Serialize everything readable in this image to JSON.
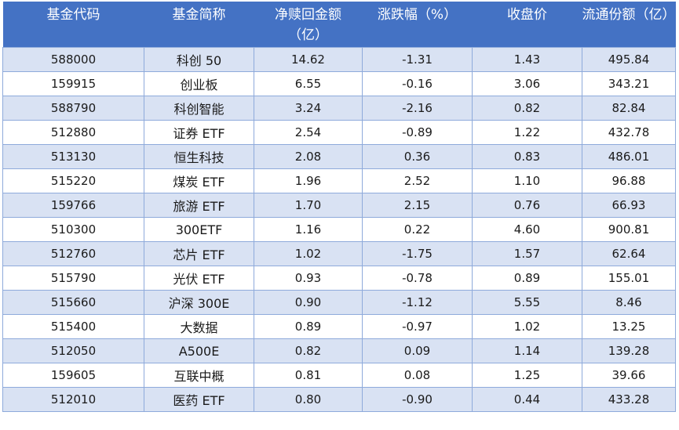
{
  "header": {
    "code": "基金代码",
    "name": "基金简称",
    "net_inflow": "净赎回金额（亿）",
    "change": "涨跌幅（%）",
    "close": "收盘价",
    "shares": "流通份额（亿）"
  },
  "rows": [
    {
      "code": "588000",
      "name": "科创 50",
      "net_inflow": "14.62",
      "change": "-1.31",
      "close": "1.43",
      "shares": "495.84"
    },
    {
      "code": "159915",
      "name": "创业板",
      "net_inflow": "6.55",
      "change": "-0.16",
      "close": "3.06",
      "shares": "343.21"
    },
    {
      "code": "588790",
      "name": "科创智能",
      "net_inflow": "3.24",
      "change": "-2.16",
      "close": "0.82",
      "shares": "82.84"
    },
    {
      "code": "512880",
      "name": "证券 ETF",
      "net_inflow": "2.54",
      "change": "-0.89",
      "close": "1.22",
      "shares": "432.78"
    },
    {
      "code": "513130",
      "name": "恒生科技",
      "net_inflow": "2.08",
      "change": "0.36",
      "close": "0.83",
      "shares": "486.01"
    },
    {
      "code": "515220",
      "name": "煤炭 ETF",
      "net_inflow": "1.96",
      "change": "2.52",
      "close": "1.10",
      "shares": "96.88"
    },
    {
      "code": "159766",
      "name": "旅游 ETF",
      "net_inflow": "1.70",
      "change": "2.15",
      "close": "0.76",
      "shares": "66.93"
    },
    {
      "code": "510300",
      "name": "300ETF",
      "net_inflow": "1.16",
      "change": "0.22",
      "close": "4.60",
      "shares": "900.81"
    },
    {
      "code": "512760",
      "name": "芯片 ETF",
      "net_inflow": "1.02",
      "change": "-1.75",
      "close": "1.57",
      "shares": "62.64"
    },
    {
      "code": "515790",
      "name": "光伏 ETF",
      "net_inflow": "0.93",
      "change": "-0.78",
      "close": "0.89",
      "shares": "155.01"
    },
    {
      "code": "515660",
      "name": "沪深 300E",
      "net_inflow": "0.90",
      "change": "-1.12",
      "close": "5.55",
      "shares": "8.46"
    },
    {
      "code": "515400",
      "name": "大数据",
      "net_inflow": "0.89",
      "change": "-0.97",
      "close": "1.02",
      "shares": "13.25"
    },
    {
      "code": "512050",
      "name": "A500E",
      "net_inflow": "0.82",
      "change": "0.09",
      "close": "1.14",
      "shares": "139.28"
    },
    {
      "code": "159605",
      "name": "互联中概",
      "net_inflow": "0.81",
      "change": "0.08",
      "close": "1.25",
      "shares": "39.66"
    },
    {
      "code": "512010",
      "name": "医药 ETF",
      "net_inflow": "0.80",
      "change": "-0.90",
      "close": "0.44",
      "shares": "433.28"
    }
  ]
}
